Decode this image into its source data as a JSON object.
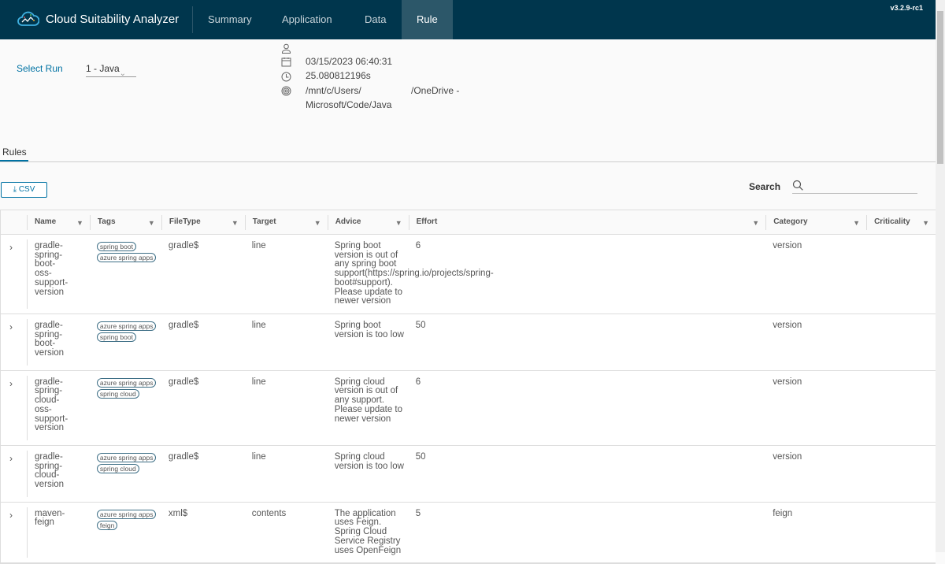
{
  "header": {
    "title": "Cloud Suitability Analyzer",
    "version": "v3.2.9-rc1",
    "nav": [
      {
        "label": "Summary"
      },
      {
        "label": "Application"
      },
      {
        "label": "Data"
      },
      {
        "label": "Rule",
        "active": true
      }
    ]
  },
  "run": {
    "label": "Select Run",
    "selected": "1 - Java",
    "date": "03/15/2023 06:40:31",
    "duration": "25.080812196s",
    "path_a": "/mnt/c/Users/",
    "path_b": "/OneDrive -",
    "path_c": "Microsoft/Code/Java"
  },
  "tabs": {
    "rules": "Rules"
  },
  "toolbar": {
    "csv": "CSV",
    "search_label": "Search",
    "search_value": ""
  },
  "table": {
    "columns": [
      "Name",
      "Tags",
      "FileType",
      "Target",
      "Advice",
      "Effort",
      "",
      "Category",
      "Criticality"
    ],
    "rows": [
      {
        "name": "gradle-spring-boot-oss-support-version",
        "tags": [
          "spring boot",
          "azure spring apps"
        ],
        "filetype": "gradle$",
        "target": "line",
        "advice": "Spring boot version is out of any spring boot support(https://spring.io/projects/spring-boot#support). Please update to newer version",
        "effort": "6",
        "category": "version",
        "criticality": ""
      },
      {
        "name": "gradle-spring-boot-version",
        "tags": [
          "azure spring apps",
          "spring boot"
        ],
        "filetype": "gradle$",
        "target": "line",
        "advice": "Spring boot version is too low",
        "effort": "50",
        "category": "version",
        "criticality": ""
      },
      {
        "name": "gradle-spring-cloud-oss-support-version",
        "tags": [
          "azure spring apps",
          "spring cloud"
        ],
        "filetype": "gradle$",
        "target": "line",
        "advice": "Spring cloud version is out of any support. Please update to newer version",
        "effort": "6",
        "category": "version",
        "criticality": ""
      },
      {
        "name": "gradle-spring-cloud-version",
        "tags": [
          "azure spring apps",
          "spring cloud"
        ],
        "filetype": "gradle$",
        "target": "line",
        "advice": "Spring cloud version is too low",
        "effort": "50",
        "category": "version",
        "criticality": ""
      },
      {
        "name": "maven-feign",
        "tags": [
          "azure spring apps",
          "feign"
        ],
        "filetype": "xml$",
        "target": "contents",
        "advice": "The application uses Feign. Spring Cloud Service Registry uses OpenFeign",
        "effort": "5",
        "category": "feign",
        "criticality": ""
      }
    ]
  }
}
